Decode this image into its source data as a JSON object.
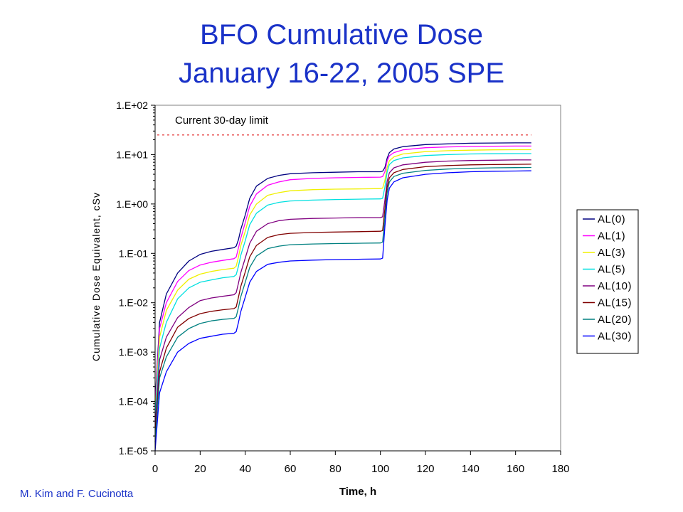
{
  "chart_data": {
    "type": "line",
    "title": "BFO Cumulative Dose",
    "subtitle": "January 16-22, 2005 SPE",
    "xlabel": "Time, h",
    "ylabel": "Cumulative Dose Equivalent, cSv",
    "y_scale": "log",
    "xlim": [
      0,
      180
    ],
    "ylim": [
      1e-05,
      100
    ],
    "x_ticks": [
      "0",
      "20",
      "40",
      "60",
      "80",
      "100",
      "120",
      "140",
      "160",
      "180"
    ],
    "y_ticks": [
      "1.E-05",
      "1.E-04",
      "1.E-03",
      "1.E-02",
      "1.E-01",
      "1.E+00",
      "1.E+01",
      "1.E+02"
    ],
    "grid": false,
    "legend_position": "right",
    "annotation": {
      "text": "Current 30-day limit",
      "value": 25,
      "color": "#e02020",
      "style": "dotted"
    },
    "x": [
      0,
      2,
      5,
      10,
      15,
      20,
      25,
      30,
      35,
      36,
      37,
      38,
      40,
      42,
      45,
      50,
      55,
      60,
      70,
      80,
      90,
      100,
      101,
      102,
      103,
      104,
      106,
      110,
      120,
      130,
      140,
      150,
      160,
      167
    ],
    "series": [
      {
        "name": "AL(0)",
        "color": "#000080",
        "values": [
          0.0001,
          0.004,
          0.015,
          0.04,
          0.07,
          0.095,
          0.11,
          0.12,
          0.13,
          0.14,
          0.19,
          0.3,
          0.6,
          1.3,
          2.3,
          3.3,
          3.8,
          4.1,
          4.3,
          4.4,
          4.5,
          4.5,
          4.6,
          5.5,
          8.5,
          11,
          13,
          14.5,
          16,
          16.5,
          17,
          17.2,
          17.3,
          17.3
        ]
      },
      {
        "name": "AL(1)",
        "color": "#ff00ff",
        "values": [
          8e-05,
          0.003,
          0.01,
          0.027,
          0.045,
          0.058,
          0.066,
          0.072,
          0.078,
          0.084,
          0.13,
          0.2,
          0.42,
          0.9,
          1.6,
          2.4,
          2.8,
          3.1,
          3.3,
          3.4,
          3.45,
          3.5,
          3.6,
          4.5,
          7.5,
          9.5,
          11,
          12.5,
          13.8,
          14.3,
          14.6,
          14.8,
          14.9,
          14.9
        ]
      },
      {
        "name": "AL(3)",
        "color": "#f0f000",
        "values": [
          6e-05,
          0.002,
          0.007,
          0.018,
          0.03,
          0.038,
          0.043,
          0.047,
          0.05,
          0.055,
          0.085,
          0.14,
          0.28,
          0.6,
          1.0,
          1.5,
          1.7,
          1.85,
          1.95,
          2.0,
          2.02,
          2.05,
          2.1,
          3.0,
          5.5,
          7.5,
          9.0,
          10.3,
          11.5,
          12,
          12.3,
          12.5,
          12.6,
          12.6
        ]
      },
      {
        "name": "AL(5)",
        "color": "#00e0e0",
        "values": [
          5e-05,
          0.0012,
          0.004,
          0.012,
          0.02,
          0.026,
          0.029,
          0.032,
          0.034,
          0.037,
          0.055,
          0.09,
          0.18,
          0.38,
          0.65,
          0.95,
          1.08,
          1.15,
          1.2,
          1.23,
          1.25,
          1.27,
          1.3,
          2.2,
          4.5,
          6.3,
          7.6,
          8.6,
          9.6,
          10,
          10.3,
          10.4,
          10.5,
          10.5
        ]
      },
      {
        "name": "AL(10)",
        "color": "#800080",
        "values": [
          3e-05,
          0.0007,
          0.002,
          0.005,
          0.008,
          0.011,
          0.0125,
          0.0135,
          0.0145,
          0.016,
          0.025,
          0.04,
          0.08,
          0.16,
          0.28,
          0.4,
          0.46,
          0.49,
          0.51,
          0.52,
          0.53,
          0.53,
          0.55,
          1.2,
          2.9,
          4.3,
          5.4,
          6.2,
          7.0,
          7.4,
          7.6,
          7.7,
          7.8,
          7.8
        ]
      },
      {
        "name": "AL(15)",
        "color": "#800000",
        "values": [
          2e-05,
          0.0004,
          0.0012,
          0.0032,
          0.0048,
          0.006,
          0.0067,
          0.0072,
          0.0076,
          0.0082,
          0.013,
          0.021,
          0.042,
          0.085,
          0.145,
          0.21,
          0.24,
          0.255,
          0.265,
          0.27,
          0.275,
          0.28,
          0.29,
          0.8,
          2.2,
          3.4,
          4.3,
          5.0,
          5.7,
          6.0,
          6.2,
          6.3,
          6.35,
          6.4
        ]
      },
      {
        "name": "AL(20)",
        "color": "#008080",
        "values": [
          1.5e-05,
          0.0003,
          0.0008,
          0.002,
          0.003,
          0.0038,
          0.0043,
          0.0046,
          0.0048,
          0.0052,
          0.008,
          0.013,
          0.026,
          0.052,
          0.088,
          0.125,
          0.14,
          0.15,
          0.155,
          0.158,
          0.16,
          0.162,
          0.17,
          0.55,
          1.7,
          2.8,
          3.6,
          4.2,
          4.8,
          5.1,
          5.3,
          5.4,
          5.45,
          5.5
        ]
      },
      {
        "name": "AL(30)",
        "color": "#0000ff",
        "values": [
          1e-05,
          0.00015,
          0.0004,
          0.001,
          0.0015,
          0.0019,
          0.0021,
          0.0023,
          0.0024,
          0.0026,
          0.004,
          0.0065,
          0.013,
          0.026,
          0.043,
          0.06,
          0.066,
          0.07,
          0.073,
          0.075,
          0.076,
          0.077,
          0.08,
          0.35,
          1.2,
          2.1,
          2.8,
          3.4,
          4.0,
          4.3,
          4.5,
          4.6,
          4.65,
          4.7
        ]
      }
    ]
  },
  "credit": "M. Kim and F. Cucinotta"
}
